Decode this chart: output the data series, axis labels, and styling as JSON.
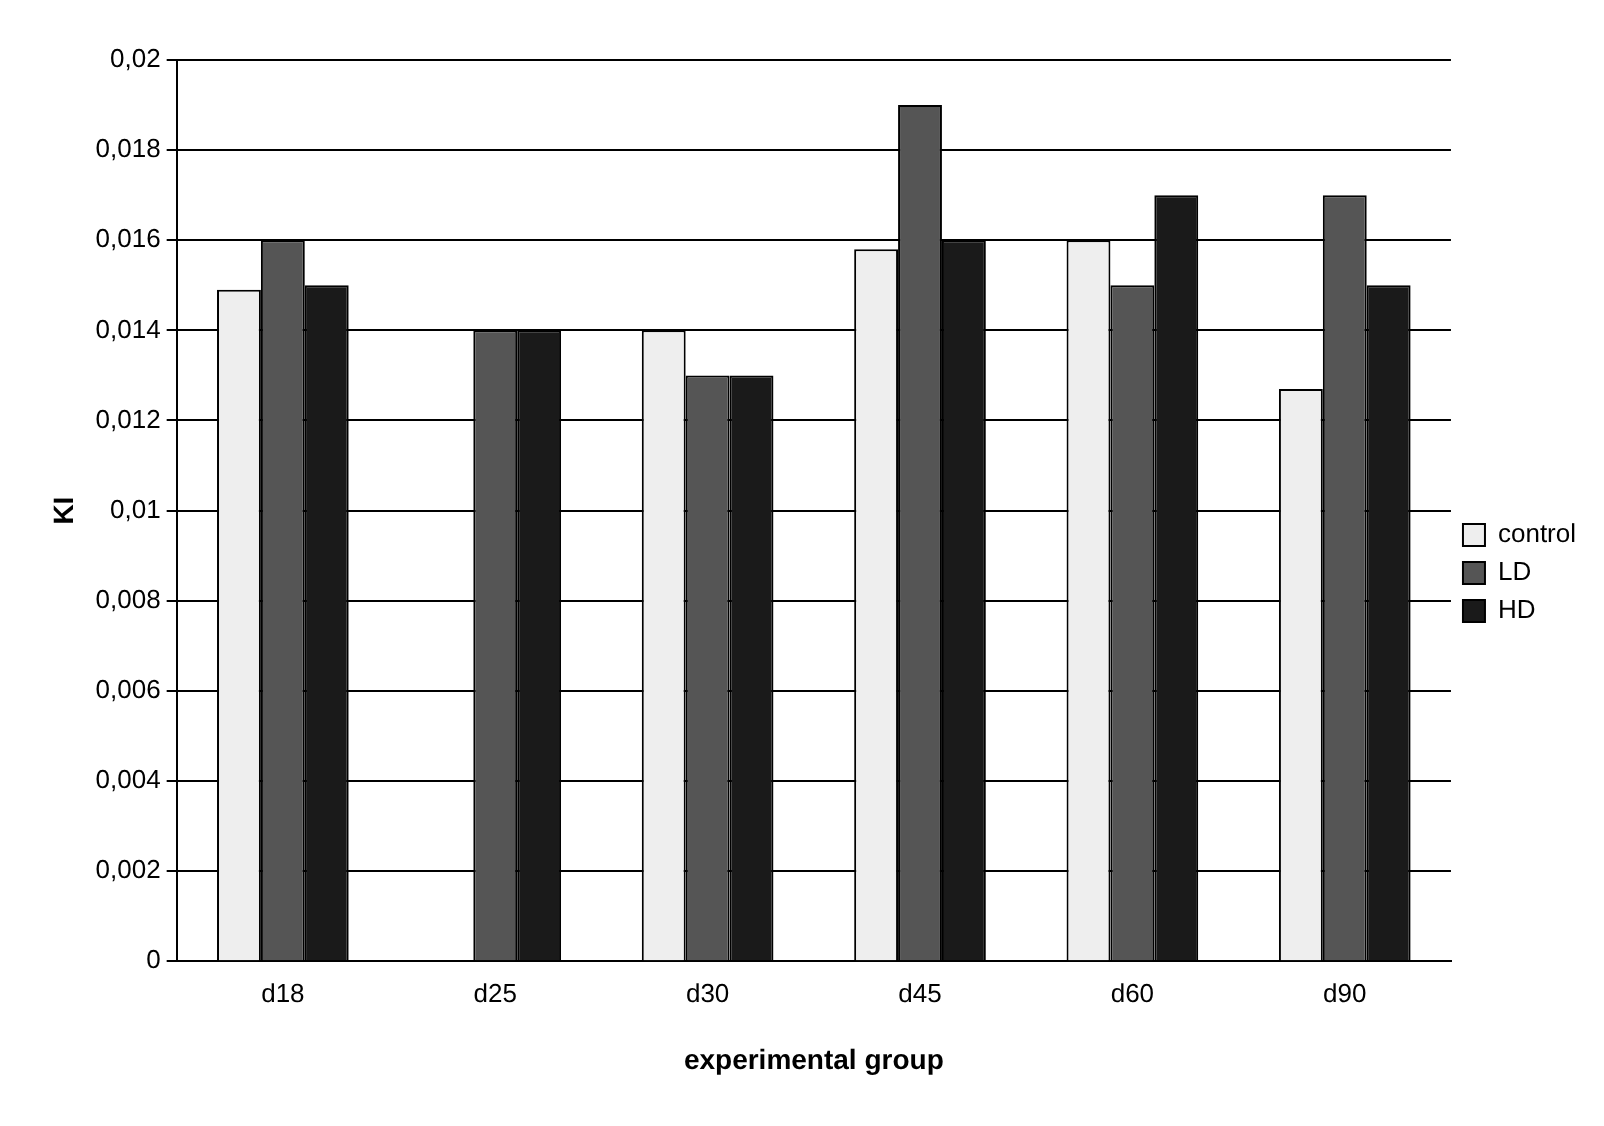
{
  "chart_data": {
    "type": "bar",
    "xlabel": "experimental group",
    "ylabel": "KI",
    "categories": [
      "d18",
      "d25",
      "d30",
      "d45",
      "d60",
      "d90"
    ],
    "series": [
      {
        "name": "control",
        "color": "#eeeeee",
        "values": [
          0.0149,
          null,
          0.014,
          0.0158,
          0.016,
          0.0127
        ]
      },
      {
        "name": "LD",
        "color": "#555555",
        "values": [
          0.016,
          0.014,
          0.013,
          0.019,
          0.015,
          0.017
        ]
      },
      {
        "name": "HD",
        "color": "#1a1a1a",
        "values": [
          0.015,
          0.014,
          0.013,
          0.016,
          0.017,
          0.015
        ]
      }
    ],
    "ylim": [
      0,
      0.02
    ],
    "yticks": [
      0,
      {
        "value": 0.002,
        "label": "0,002"
      },
      {
        "value": 0.004,
        "label": "0,004"
      },
      {
        "value": 0.006,
        "label": "0,006"
      },
      {
        "value": 0.008,
        "label": "0,008"
      },
      {
        "value": 0.01,
        "label": "0,01"
      },
      {
        "value": 0.012,
        "label": "0,012"
      },
      {
        "value": 0.014,
        "label": "0,014"
      },
      {
        "value": 0.016,
        "label": "0,016"
      },
      {
        "value": 0.018,
        "label": "0,018"
      },
      {
        "value": 0.02,
        "label": "0,02"
      }
    ],
    "grid": "y",
    "legend": "right"
  }
}
